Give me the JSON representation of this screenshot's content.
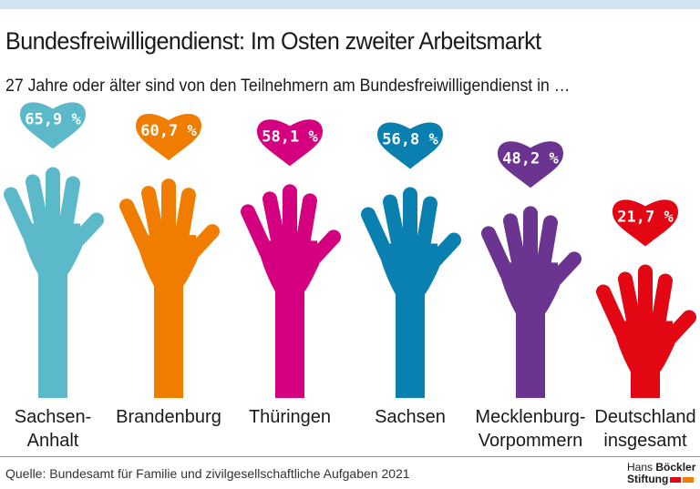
{
  "header": {
    "title": "Bundesfreiwilligendienst: Im Osten zweiter Arbeitsmarkt",
    "subtitle": "27 Jahre oder älter sind von den Teilnehmern am Bundesfreiwilligendienst in …"
  },
  "chart_data": {
    "type": "bar",
    "style": "pictogram (hands with hearts)",
    "title": "Bundesfreiwilligendienst: Im Osten zweiter Arbeitsmarkt",
    "subtitle": "27 Jahre oder älter sind von den Teilnehmern am Bundesfreiwilligendienst in …",
    "unit": "%",
    "categories": [
      [
        "Sachsen-",
        "Anhalt"
      ],
      [
        "Brandenburg"
      ],
      [
        "Thüringen"
      ],
      [
        "Sachsen"
      ],
      [
        "Mecklenburg-",
        "Vorpommern"
      ],
      [
        "Deutschland",
        "insgesamt"
      ]
    ],
    "values": [
      65.9,
      60.7,
      58.1,
      56.8,
      48.2,
      21.7
    ],
    "labels": [
      "65,9 %",
      "60,7 %",
      "58,1 %",
      "56,8 %",
      "48,2 %",
      "21,7 %"
    ],
    "colors": [
      "#5bb9c9",
      "#f07d00",
      "#d4007f",
      "#0a80b0",
      "#6b3490",
      "#e30613"
    ]
  },
  "footer": {
    "source": "Quelle: Bundesamt für Familie und zivilgesellschaftliche Aufgaben 2021",
    "logo_line1_a": "Hans ",
    "logo_line1_b": "Böckler",
    "logo_line2": "Stiftung",
    "logo_colors": [
      "#e30613",
      "#f07d00"
    ]
  }
}
